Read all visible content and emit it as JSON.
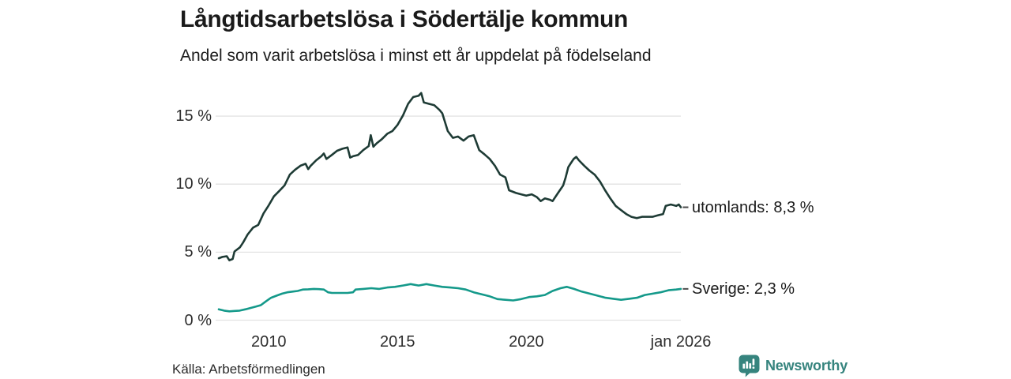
{
  "header": {
    "title": "Långtidsarbetslösa i Södertälje kommun",
    "subtitle": "Andel som varit arbetslösa i minst ett år uppdelat på födelseland"
  },
  "footer": {
    "source": "Källa: Arbetsförmedlingen",
    "brand_name": "Newsworthy",
    "brand_color": "#36847E",
    "brand_icon": "newsworthy-bar-chart-speech-bubble-icon"
  },
  "chart_data": {
    "type": "line",
    "title": "Långtidsarbetslösa i Södertälje kommun",
    "subtitle": "Andel som varit arbetslösa i minst ett år uppdelat på födelseland",
    "unit": "%",
    "grid": true,
    "grid_color": "#e3e3e3",
    "leader_dash_color": "#4d4d4d",
    "legend_position": "right-end-of-line",
    "x_axis": {
      "range": [
        2008.06,
        2026.0
      ],
      "ticks": [
        {
          "value": 2010,
          "label": "2010"
        },
        {
          "value": 2015,
          "label": "2015"
        },
        {
          "value": 2020,
          "label": "2020"
        },
        {
          "value": 2026,
          "label": "jan 2026"
        }
      ]
    },
    "y_axis": {
      "range": [
        0,
        17.5
      ],
      "ticks": [
        {
          "value": 0,
          "label": "0 %"
        },
        {
          "value": 5,
          "label": "5 %"
        },
        {
          "value": 10,
          "label": "10 %"
        },
        {
          "value": 15,
          "label": "15 %"
        }
      ]
    },
    "series": [
      {
        "name": "utomlands",
        "color": "#1E3B35",
        "end_label": "utomlands: 8,3 %",
        "end_value": 8.3,
        "points": [
          [
            2008.06,
            4.55
          ],
          [
            2008.2,
            4.65
          ],
          [
            2008.37,
            4.7
          ],
          [
            2008.47,
            4.4
          ],
          [
            2008.6,
            4.5
          ],
          [
            2008.67,
            5.05
          ],
          [
            2008.88,
            5.35
          ],
          [
            2009.0,
            5.7
          ],
          [
            2009.18,
            6.3
          ],
          [
            2009.39,
            6.8
          ],
          [
            2009.59,
            7.0
          ],
          [
            2009.8,
            7.85
          ],
          [
            2010.0,
            8.45
          ],
          [
            2010.2,
            9.1
          ],
          [
            2010.41,
            9.5
          ],
          [
            2010.61,
            9.9
          ],
          [
            2010.82,
            10.7
          ],
          [
            2011.02,
            11.05
          ],
          [
            2011.23,
            11.35
          ],
          [
            2011.43,
            11.5
          ],
          [
            2011.53,
            11.1
          ],
          [
            2011.63,
            11.35
          ],
          [
            2011.84,
            11.75
          ],
          [
            2012.04,
            12.05
          ],
          [
            2012.14,
            12.25
          ],
          [
            2012.24,
            11.85
          ],
          [
            2012.45,
            12.15
          ],
          [
            2012.65,
            12.45
          ],
          [
            2012.86,
            12.6
          ],
          [
            2013.06,
            12.7
          ],
          [
            2013.16,
            11.95
          ],
          [
            2013.27,
            12.05
          ],
          [
            2013.47,
            12.15
          ],
          [
            2013.67,
            12.5
          ],
          [
            2013.88,
            12.8
          ],
          [
            2013.96,
            13.6
          ],
          [
            2014.06,
            12.75
          ],
          [
            2014.19,
            13.0
          ],
          [
            2014.39,
            13.3
          ],
          [
            2014.6,
            13.7
          ],
          [
            2014.8,
            13.9
          ],
          [
            2015.0,
            14.35
          ],
          [
            2015.21,
            15.05
          ],
          [
            2015.41,
            15.9
          ],
          [
            2015.61,
            16.4
          ],
          [
            2015.82,
            16.5
          ],
          [
            2015.92,
            16.7
          ],
          [
            2016.02,
            16.0
          ],
          [
            2016.22,
            15.9
          ],
          [
            2016.43,
            15.8
          ],
          [
            2016.63,
            15.45
          ],
          [
            2016.74,
            15.2
          ],
          [
            2016.95,
            13.9
          ],
          [
            2017.15,
            13.4
          ],
          [
            2017.35,
            13.5
          ],
          [
            2017.56,
            13.2
          ],
          [
            2017.76,
            13.5
          ],
          [
            2017.96,
            13.6
          ],
          [
            2018.17,
            12.5
          ],
          [
            2018.37,
            12.2
          ],
          [
            2018.58,
            11.85
          ],
          [
            2018.78,
            11.35
          ],
          [
            2018.98,
            10.7
          ],
          [
            2019.19,
            10.5
          ],
          [
            2019.33,
            9.55
          ],
          [
            2019.6,
            9.35
          ],
          [
            2019.8,
            9.25
          ],
          [
            2020.0,
            9.15
          ],
          [
            2020.21,
            9.25
          ],
          [
            2020.41,
            9.05
          ],
          [
            2020.56,
            8.75
          ],
          [
            2020.72,
            8.95
          ],
          [
            2020.92,
            8.85
          ],
          [
            2021.02,
            8.75
          ],
          [
            2021.23,
            9.35
          ],
          [
            2021.43,
            9.9
          ],
          [
            2021.53,
            10.5
          ],
          [
            2021.63,
            11.25
          ],
          [
            2021.73,
            11.55
          ],
          [
            2021.84,
            11.85
          ],
          [
            2021.94,
            12.0
          ],
          [
            2022.04,
            11.75
          ],
          [
            2022.25,
            11.35
          ],
          [
            2022.45,
            11.0
          ],
          [
            2022.65,
            10.7
          ],
          [
            2022.86,
            10.2
          ],
          [
            2023.06,
            9.55
          ],
          [
            2023.26,
            8.95
          ],
          [
            2023.47,
            8.4
          ],
          [
            2023.67,
            8.1
          ],
          [
            2023.88,
            7.8
          ],
          [
            2024.08,
            7.6
          ],
          [
            2024.29,
            7.5
          ],
          [
            2024.49,
            7.6
          ],
          [
            2024.7,
            7.6
          ],
          [
            2024.9,
            7.6
          ],
          [
            2025.1,
            7.7
          ],
          [
            2025.31,
            7.8
          ],
          [
            2025.41,
            8.4
          ],
          [
            2025.61,
            8.5
          ],
          [
            2025.82,
            8.4
          ],
          [
            2025.92,
            8.5
          ],
          [
            2026.0,
            8.3
          ]
        ]
      },
      {
        "name": "Sverige",
        "color": "#14998A",
        "end_label": "Sverige: 2,3 %",
        "end_value": 2.3,
        "points": [
          [
            2008.06,
            0.8
          ],
          [
            2008.27,
            0.7
          ],
          [
            2008.47,
            0.65
          ],
          [
            2008.67,
            0.68
          ],
          [
            2008.87,
            0.7
          ],
          [
            2009.1,
            0.8
          ],
          [
            2009.3,
            0.9
          ],
          [
            2009.5,
            1.0
          ],
          [
            2009.69,
            1.1
          ],
          [
            2009.9,
            1.4
          ],
          [
            2010.09,
            1.65
          ],
          [
            2010.3,
            1.8
          ],
          [
            2010.52,
            1.95
          ],
          [
            2010.72,
            2.05
          ],
          [
            2010.92,
            2.1
          ],
          [
            2011.12,
            2.15
          ],
          [
            2011.32,
            2.25
          ],
          [
            2011.53,
            2.27
          ],
          [
            2011.75,
            2.3
          ],
          [
            2011.95,
            2.28
          ],
          [
            2012.14,
            2.25
          ],
          [
            2012.3,
            2.05
          ],
          [
            2012.45,
            2.0
          ],
          [
            2012.75,
            2.0
          ],
          [
            2013.06,
            2.0
          ],
          [
            2013.27,
            2.05
          ],
          [
            2013.37,
            2.25
          ],
          [
            2013.67,
            2.3
          ],
          [
            2013.98,
            2.35
          ],
          [
            2014.29,
            2.3
          ],
          [
            2014.6,
            2.4
          ],
          [
            2014.9,
            2.45
          ],
          [
            2015.21,
            2.55
          ],
          [
            2015.51,
            2.65
          ],
          [
            2015.82,
            2.55
          ],
          [
            2016.12,
            2.65
          ],
          [
            2016.43,
            2.55
          ],
          [
            2016.74,
            2.45
          ],
          [
            2017.04,
            2.4
          ],
          [
            2017.35,
            2.35
          ],
          [
            2017.65,
            2.25
          ],
          [
            2017.96,
            2.05
          ],
          [
            2018.27,
            1.9
          ],
          [
            2018.58,
            1.75
          ],
          [
            2018.88,
            1.55
          ],
          [
            2019.19,
            1.5
          ],
          [
            2019.49,
            1.45
          ],
          [
            2019.8,
            1.55
          ],
          [
            2020.11,
            1.7
          ],
          [
            2020.41,
            1.75
          ],
          [
            2020.72,
            1.85
          ],
          [
            2021.02,
            2.15
          ],
          [
            2021.33,
            2.35
          ],
          [
            2021.57,
            2.45
          ],
          [
            2021.85,
            2.3
          ],
          [
            2022.15,
            2.1
          ],
          [
            2022.46,
            1.95
          ],
          [
            2022.77,
            1.8
          ],
          [
            2023.07,
            1.65
          ],
          [
            2023.38,
            1.57
          ],
          [
            2023.68,
            1.5
          ],
          [
            2023.99,
            1.57
          ],
          [
            2024.3,
            1.65
          ],
          [
            2024.6,
            1.85
          ],
          [
            2024.91,
            1.95
          ],
          [
            2025.21,
            2.05
          ],
          [
            2025.52,
            2.2
          ],
          [
            2025.82,
            2.25
          ],
          [
            2026.0,
            2.3
          ]
        ]
      }
    ]
  }
}
